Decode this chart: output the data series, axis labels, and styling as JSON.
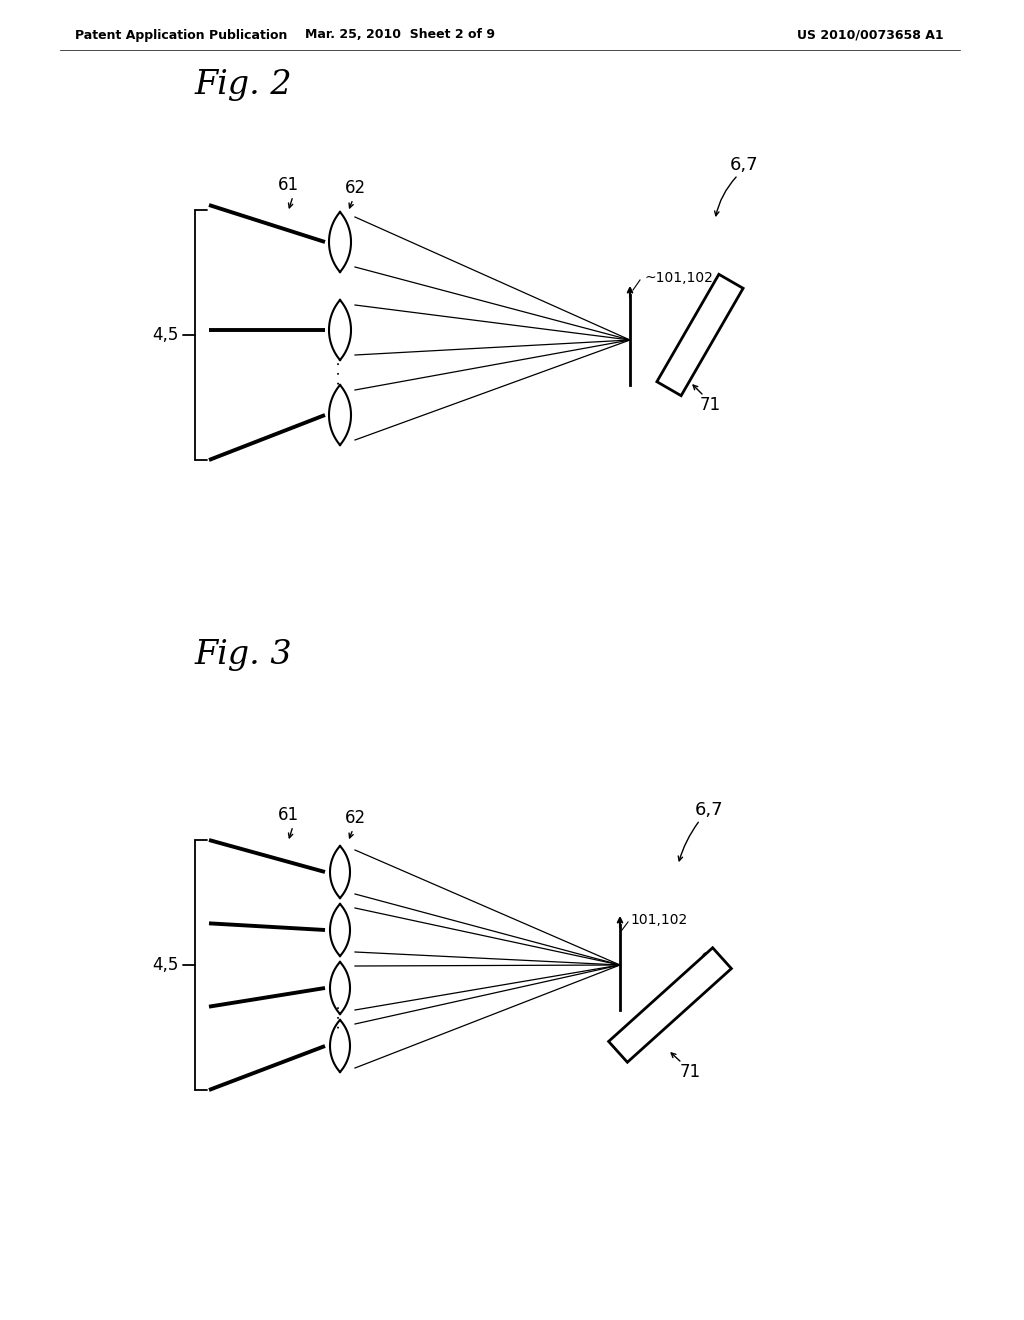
{
  "bg_color": "#ffffff",
  "header_left": "Patent Application Publication",
  "header_mid": "Mar. 25, 2010  Sheet 2 of 9",
  "header_right": "US 2010/0073658 A1",
  "fig2_title": "Fig. 2",
  "fig3_title": "Fig. 3"
}
